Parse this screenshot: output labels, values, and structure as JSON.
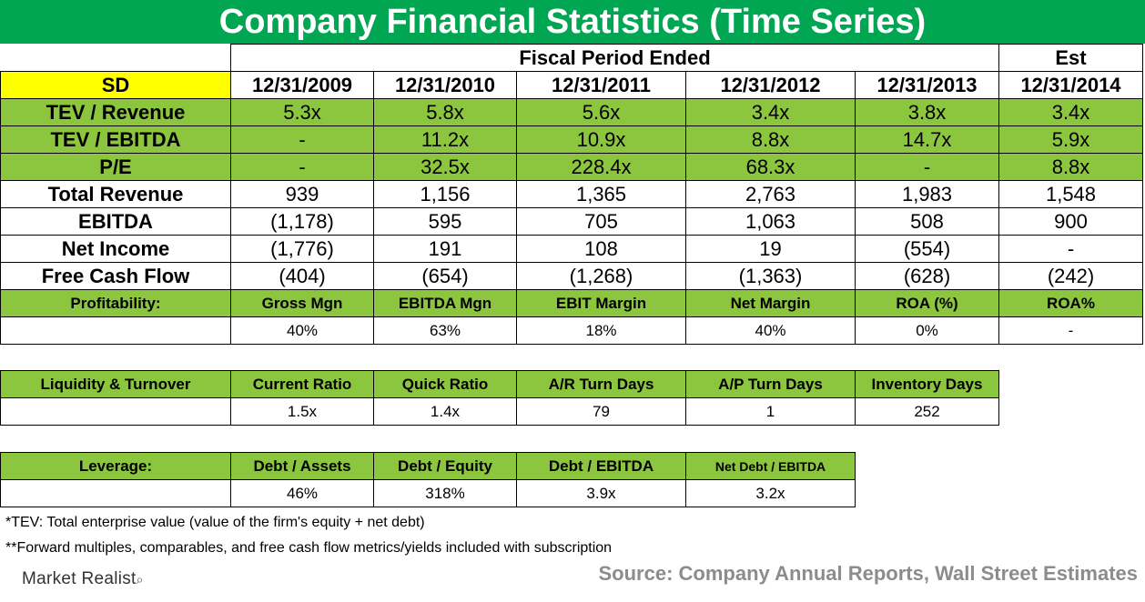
{
  "title": "Company Financial Statistics (Time Series)",
  "header": {
    "fiscal_label": "Fiscal Period Ended",
    "est_label": "Est",
    "sd_label": "SD",
    "dates": [
      "12/31/2009",
      "12/31/2010",
      "12/31/2011",
      "12/31/2012",
      "12/31/2013",
      "12/31/2014"
    ]
  },
  "multiples": [
    {
      "label": "TEV / Revenue",
      "values": [
        "5.3x",
        "5.8x",
        "5.6x",
        "3.4x",
        "3.8x",
        "3.4x"
      ]
    },
    {
      "label": "TEV / EBITDA",
      "values": [
        "-",
        "11.2x",
        "10.9x",
        "8.8x",
        "14.7x",
        "5.9x"
      ]
    },
    {
      "label": "P/E",
      "values": [
        "-",
        "32.5x",
        "228.4x",
        "68.3x",
        "-",
        "8.8x"
      ]
    }
  ],
  "financials": [
    {
      "label": "Total Revenue",
      "values": [
        "939",
        "1,156",
        "1,365",
        "2,763",
        "1,983",
        "1,548"
      ]
    },
    {
      "label": "EBITDA",
      "values": [
        "(1,178)",
        "595",
        "705",
        "1,063",
        "508",
        "900"
      ]
    },
    {
      "label": "Net Income",
      "values": [
        "(1,776)",
        "191",
        "108",
        "19",
        "(554)",
        "-"
      ]
    },
    {
      "label": "Free Cash Flow",
      "values": [
        "(404)",
        "(654)",
        "(1,268)",
        "(1,363)",
        "(628)",
        "(242)"
      ]
    }
  ],
  "profitability": {
    "label": "Profitability:",
    "headers": [
      "Gross Mgn",
      "EBITDA Mgn",
      "EBIT Margin",
      "Net Margin",
      "ROA (%)",
      "ROA%"
    ],
    "values": [
      "40%",
      "63%",
      "18%",
      "40%",
      "0%",
      "-"
    ]
  },
  "liquidity": {
    "label": "Liquidity & Turnover",
    "headers": [
      "Current Ratio",
      "Quick Ratio",
      "A/R Turn Days",
      "A/P Turn Days",
      "Inventory Days"
    ],
    "values": [
      "1.5x",
      "1.4x",
      "79",
      "1",
      "252"
    ]
  },
  "leverage": {
    "label": "Leverage:",
    "headers": [
      "Debt / Assets",
      "Debt / Equity",
      "Debt / EBITDA",
      "Net Debt / EBITDA"
    ],
    "values": [
      "46%",
      "318%",
      "3.9x",
      "3.2x"
    ]
  },
  "notes": {
    "tev": "*TEV: Total enterprise value (value of the firm's equity + net debt)",
    "forward": "**Forward multiples, comparables, and free cash flow metrics/yields included with subscription"
  },
  "footer": {
    "logo": "Market Realist",
    "source": "Source: Company Annual Reports, Wall Street Estimates"
  },
  "colors": {
    "green": "#00a651",
    "light_green": "#8cc63f",
    "yellow": "#ffff00",
    "source_gray": "#8c8c8c"
  }
}
